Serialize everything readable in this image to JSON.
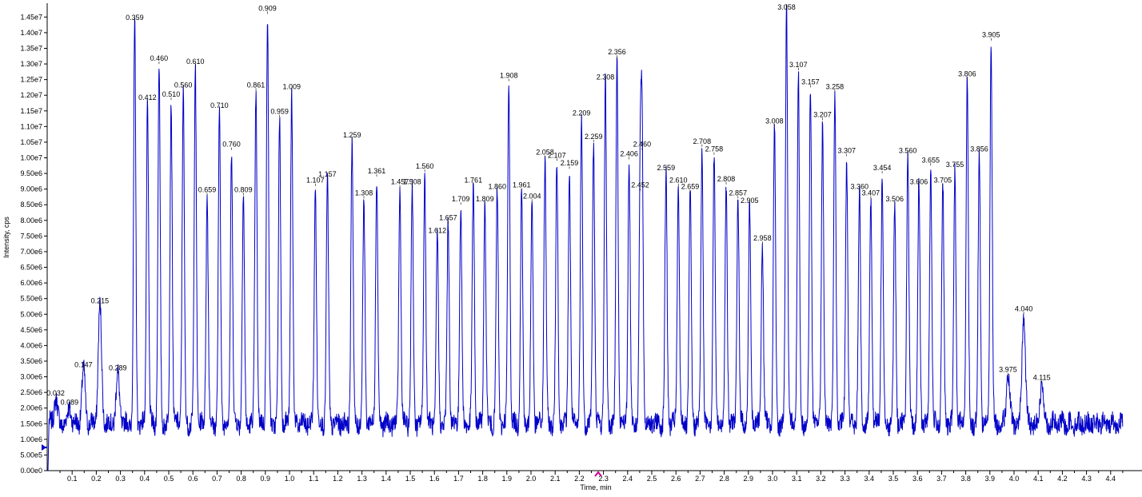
{
  "chart_data": {
    "type": "line",
    "title": "",
    "xlabel": "Time, min",
    "ylabel": "Intensity, cps",
    "xlim": [
      0.0,
      4.45
    ],
    "ylim": [
      0,
      14900000
    ],
    "x_ticks": [
      0.1,
      0.2,
      0.3,
      0.4,
      0.5,
      0.6,
      0.7,
      0.8,
      0.9,
      1.0,
      1.1,
      1.2,
      1.3,
      1.4,
      1.5,
      1.6,
      1.7,
      1.8,
      1.9,
      2.0,
      2.1,
      2.2,
      2.3,
      2.4,
      2.5,
      2.6,
      2.7,
      2.8,
      2.9,
      3.0,
      3.1,
      3.2,
      3.3,
      3.4,
      3.5,
      3.6,
      3.7,
      3.8,
      3.9,
      4.0,
      4.1,
      4.2,
      4.3,
      4.4
    ],
    "x_tick_labels": [
      "0.1",
      "0.2",
      "0.3",
      "0.4",
      "0.5",
      "0.6",
      "0.7",
      "0.8",
      "0.9",
      "1.0",
      "1.1",
      "1.2",
      "1.3",
      "1.4",
      "1.5",
      "1.6",
      "1.7",
      "1.8",
      "1.9",
      "2.0",
      "2.1",
      "2.2",
      "2.3",
      "2.4",
      "2.5",
      "2.6",
      "2.7",
      "2.8",
      "2.9",
      "3.0",
      "3.1",
      "3.2",
      "3.3",
      "3.4",
      "3.5",
      "3.6",
      "3.7",
      "3.8",
      "3.9",
      "4.0",
      "4.1",
      "4.2",
      "4.3",
      "4.4"
    ],
    "y_ticks": [
      0,
      500000,
      1000000,
      1500000,
      2000000,
      2500000,
      3000000,
      3500000,
      4000000,
      4500000,
      5000000,
      5500000,
      6000000,
      6500000,
      7000000,
      7500000,
      8000000,
      8500000,
      9000000,
      9500000,
      10000000,
      10500000,
      11000000,
      11500000,
      12000000,
      12500000,
      13000000,
      13500000,
      14000000,
      14500000
    ],
    "y_tick_labels": [
      "0.00e0",
      "5.00e5",
      "1.00e6",
      "1.50e6",
      "2.00e6",
      "2.50e6",
      "3.00e6",
      "3.50e6",
      "4.00e6",
      "4.50e6",
      "5.00e6",
      "5.50e6",
      "6.00e6",
      "6.50e6",
      "7.00e6",
      "7.50e6",
      "8.00e6",
      "8.50e6",
      "9.00e6",
      "9.50e6",
      "1.00e7",
      "1.05e7",
      "1.10e7",
      "1.15e7",
      "1.20e7",
      "1.25e7",
      "1.30e7",
      "1.35e7",
      "1.40e7",
      "1.45e7"
    ],
    "baseline": 1500000,
    "line_color": "#0000c8",
    "grid": false,
    "peaks": [
      {
        "x": 0.032,
        "y": 2300000,
        "label": "0.032"
      },
      {
        "x": 0.089,
        "y": 2000000,
        "label": "0.089"
      },
      {
        "x": 0.147,
        "y": 3200000,
        "label": "0.147"
      },
      {
        "x": 0.215,
        "y": 5250000,
        "label": "0.215"
      },
      {
        "x": 0.289,
        "y": 3100000,
        "label": "0.289"
      },
      {
        "x": 0.359,
        "y": 14300000,
        "label": "0.359"
      },
      {
        "x": 0.412,
        "y": 11750000,
        "label": "0.412"
      },
      {
        "x": 0.46,
        "y": 13000000,
        "label": "0.460"
      },
      {
        "x": 0.51,
        "y": 11850000,
        "label": "0.510"
      },
      {
        "x": 0.56,
        "y": 12150000,
        "label": "0.560"
      },
      {
        "x": 0.61,
        "y": 12900000,
        "label": "0.610"
      },
      {
        "x": 0.659,
        "y": 8800000,
        "label": "0.659"
      },
      {
        "x": 0.71,
        "y": 11500000,
        "label": "0.710"
      },
      {
        "x": 0.76,
        "y": 10250000,
        "label": "0.760"
      },
      {
        "x": 0.809,
        "y": 8800000,
        "label": "0.809"
      },
      {
        "x": 0.861,
        "y": 12150000,
        "label": "0.861"
      },
      {
        "x": 0.909,
        "y": 14600000,
        "label": "0.909"
      },
      {
        "x": 0.959,
        "y": 11300000,
        "label": "0.959"
      },
      {
        "x": 1.009,
        "y": 12100000,
        "label": "1.009"
      },
      {
        "x": 1.107,
        "y": 9100000,
        "label": "1.107"
      },
      {
        "x": 1.157,
        "y": 9300000,
        "label": "1.157"
      },
      {
        "x": 1.259,
        "y": 10550000,
        "label": "1.259"
      },
      {
        "x": 1.308,
        "y": 8700000,
        "label": "1.308"
      },
      {
        "x": 1.361,
        "y": 9400000,
        "label": "1.361"
      },
      {
        "x": 1.457,
        "y": 9050000,
        "label": "1.457"
      },
      {
        "x": 1.508,
        "y": 9050000,
        "label": "1.508"
      },
      {
        "x": 1.56,
        "y": 9550000,
        "label": "1.560"
      },
      {
        "x": 1.612,
        "y": 7500000,
        "label": "1.612"
      },
      {
        "x": 1.657,
        "y": 7900000,
        "label": "1.657"
      },
      {
        "x": 1.709,
        "y": 8500000,
        "label": "1.709"
      },
      {
        "x": 1.761,
        "y": 9100000,
        "label": "1.761"
      },
      {
        "x": 1.809,
        "y": 8500000,
        "label": "1.809"
      },
      {
        "x": 1.86,
        "y": 8900000,
        "label": "1.860"
      },
      {
        "x": 1.908,
        "y": 12450000,
        "label": "1.908"
      },
      {
        "x": 1.961,
        "y": 8950000,
        "label": "1.961"
      },
      {
        "x": 2.004,
        "y": 8600000,
        "label": "2.004"
      },
      {
        "x": 2.058,
        "y": 10000000,
        "label": "2.058"
      },
      {
        "x": 2.107,
        "y": 9900000,
        "label": "2.107"
      },
      {
        "x": 2.159,
        "y": 9650000,
        "label": "2.159"
      },
      {
        "x": 2.209,
        "y": 11250000,
        "label": "2.209"
      },
      {
        "x": 2.259,
        "y": 10500000,
        "label": "2.259"
      },
      {
        "x": 2.308,
        "y": 12400000,
        "label": "2.308"
      },
      {
        "x": 2.356,
        "y": 13200000,
        "label": "2.356"
      },
      {
        "x": 2.406,
        "y": 9950000,
        "label": "2.406"
      },
      {
        "x": 2.46,
        "y": 10250000,
        "label": "2.460"
      },
      {
        "x": 2.452,
        "y": 8950000,
        "label": "2.452"
      },
      {
        "x": 2.559,
        "y": 9500000,
        "label": "2.559"
      },
      {
        "x": 2.61,
        "y": 9100000,
        "label": "2.610"
      },
      {
        "x": 2.659,
        "y": 8900000,
        "label": "2.659"
      },
      {
        "x": 2.708,
        "y": 10350000,
        "label": "2.708"
      },
      {
        "x": 2.758,
        "y": 10100000,
        "label": "2.758"
      },
      {
        "x": 2.808,
        "y": 9150000,
        "label": "2.808"
      },
      {
        "x": 2.857,
        "y": 8700000,
        "label": "2.857"
      },
      {
        "x": 2.905,
        "y": 8450000,
        "label": "2.905"
      },
      {
        "x": 2.958,
        "y": 7250000,
        "label": "2.958"
      },
      {
        "x": 3.008,
        "y": 11000000,
        "label": "3.008"
      },
      {
        "x": 3.058,
        "y": 14900000,
        "label": "3.058"
      },
      {
        "x": 3.107,
        "y": 12800000,
        "label": "3.107"
      },
      {
        "x": 3.157,
        "y": 12250000,
        "label": "3.157"
      },
      {
        "x": 3.207,
        "y": 11200000,
        "label": "3.207"
      },
      {
        "x": 3.258,
        "y": 12100000,
        "label": "3.258"
      },
      {
        "x": 3.307,
        "y": 10050000,
        "label": "3.307"
      },
      {
        "x": 3.36,
        "y": 8900000,
        "label": "3.360"
      },
      {
        "x": 3.407,
        "y": 8700000,
        "label": "3.407"
      },
      {
        "x": 3.454,
        "y": 9500000,
        "label": "3.454"
      },
      {
        "x": 3.506,
        "y": 8500000,
        "label": "3.506"
      },
      {
        "x": 3.56,
        "y": 10050000,
        "label": "3.560"
      },
      {
        "x": 3.606,
        "y": 9050000,
        "label": "3.606"
      },
      {
        "x": 3.655,
        "y": 9750000,
        "label": "3.655"
      },
      {
        "x": 3.705,
        "y": 9100000,
        "label": "3.705"
      },
      {
        "x": 3.755,
        "y": 9600000,
        "label": "3.755"
      },
      {
        "x": 3.806,
        "y": 12500000,
        "label": "3.806"
      },
      {
        "x": 3.856,
        "y": 10100000,
        "label": "3.856"
      },
      {
        "x": 3.905,
        "y": 13750000,
        "label": "3.905"
      },
      {
        "x": 3.975,
        "y": 3050000,
        "label": "3.975"
      },
      {
        "x": 4.04,
        "y": 5000000,
        "label": "4.040"
      },
      {
        "x": 4.115,
        "y": 2800000,
        "label": "4.115"
      }
    ]
  }
}
